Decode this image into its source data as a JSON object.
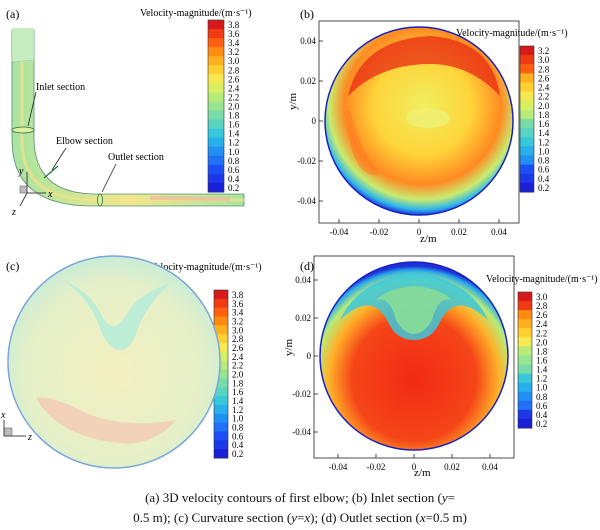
{
  "panels": {
    "a": {
      "label": "(a)",
      "legend_title": "Velocity-magnitude/(m·s⁻¹)",
      "ticks": [
        "3.8",
        "3.6",
        "3.4",
        "3.2",
        "3.0",
        "2.8",
        "2.6",
        "2.4",
        "2.2",
        "2.0",
        "1.8",
        "1.6",
        "1.4",
        "1.2",
        "1.0",
        "0.8",
        "0.6",
        "0.4",
        "0.2"
      ],
      "annotations": {
        "inlet": "Inlet section",
        "elbow": "Elbow section",
        "outlet": "Outlet section"
      },
      "axes": {
        "y": "y",
        "z": "z",
        "x": "x"
      }
    },
    "b": {
      "label": "(b)",
      "legend_title": "Velocity-magnitude/(m·s⁻¹)",
      "ticks": [
        "3.2",
        "3.0",
        "2.8",
        "2.6",
        "2.4",
        "2.2",
        "2.0",
        "1.8",
        "1.6",
        "1.4",
        "1.2",
        "1.0",
        "0.8",
        "0.6",
        "0.4",
        "0.2"
      ],
      "xlabel": "z/m",
      "ylabel": "y/m",
      "xticks": [
        "-0.04",
        "-0.02",
        "0",
        "0.02",
        "0.04"
      ],
      "yticks": [
        "0.04",
        "0.02",
        "0",
        "-0.02",
        "-0.04"
      ]
    },
    "c": {
      "label": "(c)",
      "legend_title": "Velocity-magnitude/(m·s⁻¹)",
      "ticks": [
        "3.8",
        "3.6",
        "3.4",
        "3.2",
        "3.0",
        "2.8",
        "2.6",
        "2.4",
        "2.2",
        "2.0",
        "1.8",
        "1.6",
        "1.4",
        "1.2",
        "1.0",
        "0.8",
        "0.6",
        "0.4",
        "0.2"
      ],
      "axes": {
        "x": "x",
        "z": "z"
      }
    },
    "d": {
      "label": "(d)",
      "legend_title": "Velocity-magnitude/(m·s⁻¹)",
      "ticks": [
        "3.0",
        "2.8",
        "2.6",
        "2.4",
        "2.2",
        "2.0",
        "1.8",
        "1.6",
        "1.4",
        "1.2",
        "1.0",
        "0.8",
        "0.6",
        "0.4",
        "0.2"
      ],
      "xlabel": "z/m",
      "ylabel": "y/m",
      "xticks": [
        "-0.04",
        "-0.02",
        "0",
        "0.02",
        "0.04"
      ],
      "yticks": [
        "0.04",
        "0.02",
        "0",
        "-0.02",
        "-0.04"
      ]
    }
  },
  "caption": {
    "line1_pre": "(a) 3D velocity contours of first elbow; (b) Inlet section (",
    "line1_var": "y",
    "line1_post": "=",
    "line2_a": "0.5 m); (c) Curvature section (",
    "line2_var1": "y",
    "line2_eq": "=",
    "line2_var2": "x",
    "line2_b": "); (d) Outlet section (",
    "line2_var3": "x",
    "line2_c": "=0.5 m)"
  },
  "colors": {
    "scale": [
      "#d7191c",
      "#f03a14",
      "#ff6010",
      "#ff8c10",
      "#ffb020",
      "#ffd030",
      "#f5e850",
      "#d8f060",
      "#b8ec78",
      "#98e490",
      "#78dca8",
      "#58d4c0",
      "#38c8dc",
      "#28b0ec",
      "#2090f4",
      "#2070f8",
      "#1c50f4",
      "#1c38e8",
      "#1a20d8"
    ]
  }
}
